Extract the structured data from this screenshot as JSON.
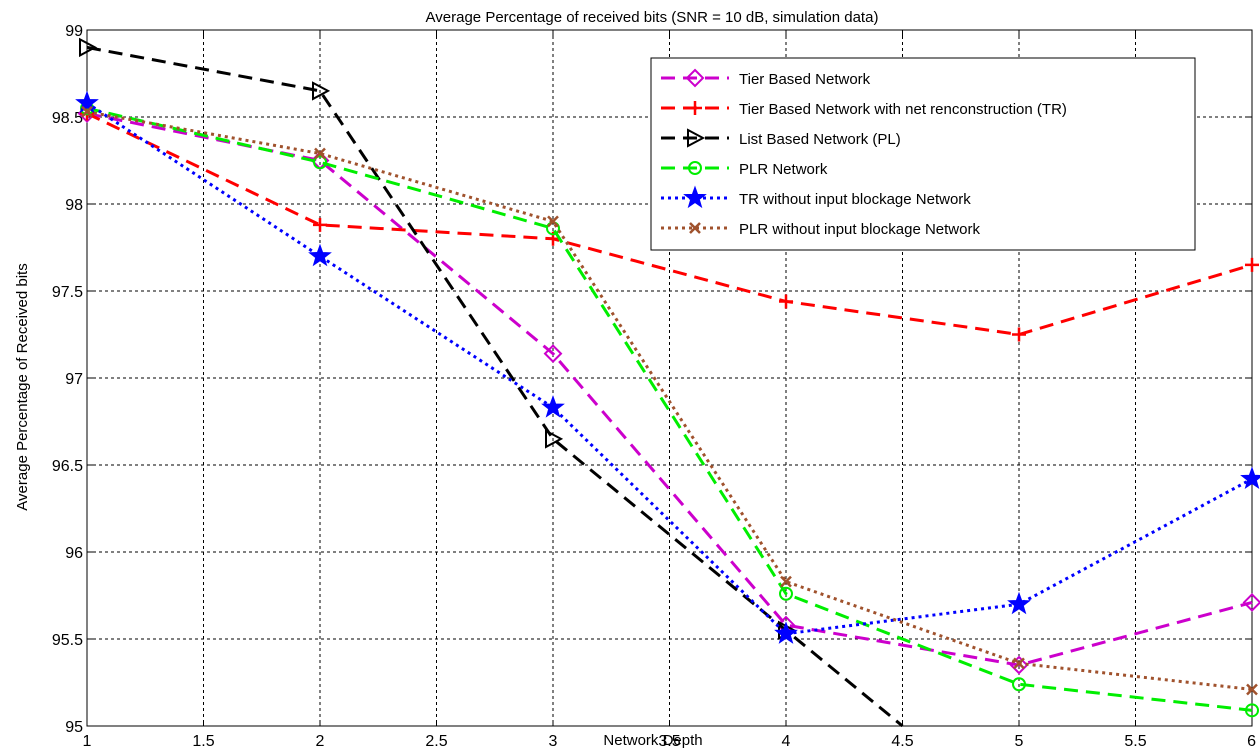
{
  "chart_data": {
    "type": "line",
    "title": "Average Percentage of received bits (SNR = 10 dB, simulation data)",
    "xlabel": "Network Depth",
    "ylabel": "Average Percentage of Received bits",
    "xlim": [
      1,
      6
    ],
    "ylim": [
      95,
      99
    ],
    "grid": true,
    "legend_position": "top-right",
    "x_ticks": [
      "1",
      "1.5",
      "2",
      "2.5",
      "3",
      "3.5",
      "4",
      "4.5",
      "5",
      "5.5",
      "6"
    ],
    "y_ticks": [
      "95",
      "95.5",
      "96",
      "96.5",
      "97",
      "97.5",
      "98",
      "98.5",
      "99"
    ],
    "series": [
      {
        "name": "Tier Based Network",
        "color": "#cc00cc",
        "dash": "dashed",
        "marker": "diamond",
        "x": [
          1,
          2,
          3,
          4,
          5,
          6
        ],
        "values": [
          98.52,
          98.25,
          97.14,
          95.58,
          95.35,
          95.71
        ]
      },
      {
        "name": "Tier Based Network with net renconstruction (TR)",
        "color": "#ff0000",
        "dash": "dashed",
        "marker": "plus",
        "x": [
          1,
          2,
          3,
          4,
          5,
          6
        ],
        "values": [
          98.52,
          97.88,
          97.8,
          97.44,
          97.25,
          97.65
        ]
      },
      {
        "name": "List Based Network (PL)",
        "color": "#000000",
        "dash": "dashed",
        "marker": "triangle-right",
        "x": [
          1,
          2,
          3,
          4,
          4.5
        ],
        "values": [
          98.9,
          98.65,
          96.65,
          95.55,
          95.0
        ]
      },
      {
        "name": "PLR Network",
        "color": "#00ee00",
        "dash": "dashed",
        "marker": "circle",
        "x": [
          1,
          2,
          3,
          4,
          5,
          6
        ],
        "values": [
          98.55,
          98.24,
          97.86,
          95.76,
          95.24,
          95.09
        ]
      },
      {
        "name": "TR without input blockage Network",
        "color": "#0000ff",
        "dash": "dotted",
        "marker": "star",
        "x": [
          1,
          2,
          3,
          4,
          5,
          6
        ],
        "values": [
          98.58,
          97.7,
          96.83,
          95.53,
          95.7,
          96.42
        ]
      },
      {
        "name": "PLR without input blockage Network",
        "color": "#a0522d",
        "dash": "dotted",
        "marker": "x",
        "x": [
          1,
          2,
          3,
          4,
          5,
          6
        ],
        "values": [
          98.53,
          98.29,
          97.9,
          95.83,
          95.36,
          95.21
        ]
      }
    ]
  }
}
